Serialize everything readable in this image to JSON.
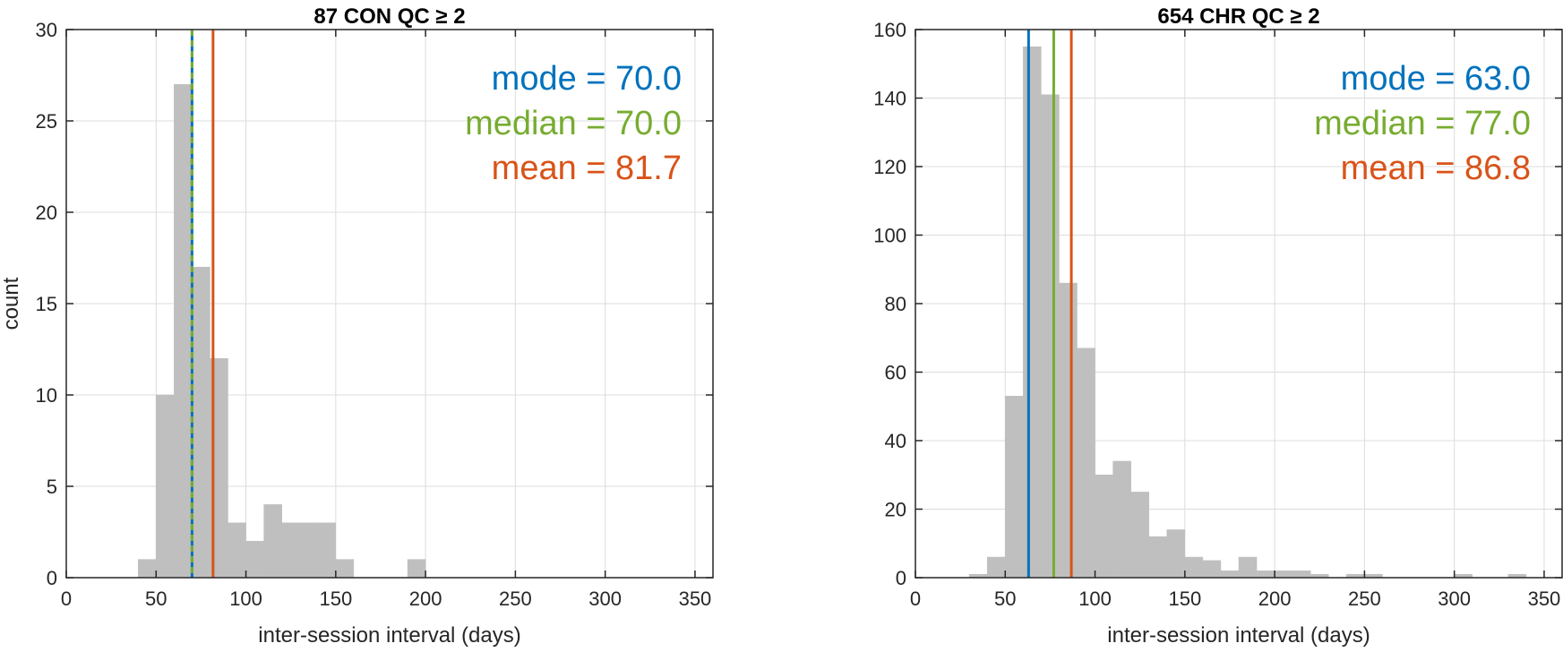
{
  "chart_data": [
    {
      "type": "bar",
      "title": "87 CON QC ≥ 2",
      "xlabel": "inter-session interval (days)",
      "ylabel": "count",
      "xlim": [
        0,
        360
      ],
      "ylim": [
        0,
        30
      ],
      "xticks": [
        0,
        50,
        100,
        150,
        200,
        250,
        300,
        350
      ],
      "yticks": [
        0,
        5,
        10,
        15,
        20,
        25,
        30
      ],
      "grid": true,
      "bin_width": 10,
      "bins": [
        {
          "x_start": 40,
          "count": 1
        },
        {
          "x_start": 50,
          "count": 10
        },
        {
          "x_start": 60,
          "count": 27
        },
        {
          "x_start": 70,
          "count": 17
        },
        {
          "x_start": 80,
          "count": 12
        },
        {
          "x_start": 90,
          "count": 3
        },
        {
          "x_start": 100,
          "count": 2
        },
        {
          "x_start": 110,
          "count": 4
        },
        {
          "x_start": 120,
          "count": 3
        },
        {
          "x_start": 130,
          "count": 3
        },
        {
          "x_start": 140,
          "count": 3
        },
        {
          "x_start": 150,
          "count": 1
        },
        {
          "x_start": 190,
          "count": 1
        }
      ],
      "stat_lines": [
        {
          "name": "mode",
          "value": 70.0,
          "color": "#0072BD",
          "dash": false
        },
        {
          "name": "median",
          "value": 70.0,
          "color": "#77AC30",
          "dash": true
        },
        {
          "name": "mean",
          "value": 81.7,
          "color": "#D95319",
          "dash": false
        }
      ],
      "stats_text": [
        {
          "text": "mode = 70.0",
          "color": "#0072BD"
        },
        {
          "text": "median = 70.0",
          "color": "#77AC30"
        },
        {
          "text": "mean = 81.7",
          "color": "#D95319"
        }
      ],
      "bar_color": "#BFBFBF"
    },
    {
      "type": "bar",
      "title": "654 CHR QC ≥ 2",
      "xlabel": "inter-session interval (days)",
      "ylabel": "",
      "xlim": [
        0,
        360
      ],
      "ylim": [
        0,
        160
      ],
      "xticks": [
        0,
        50,
        100,
        150,
        200,
        250,
        300,
        350
      ],
      "yticks": [
        0,
        20,
        40,
        60,
        80,
        100,
        120,
        140,
        160
      ],
      "grid": true,
      "bin_width": 10,
      "bins": [
        {
          "x_start": 30,
          "count": 1
        },
        {
          "x_start": 40,
          "count": 6
        },
        {
          "x_start": 50,
          "count": 53
        },
        {
          "x_start": 60,
          "count": 155
        },
        {
          "x_start": 70,
          "count": 141
        },
        {
          "x_start": 80,
          "count": 86
        },
        {
          "x_start": 90,
          "count": 67
        },
        {
          "x_start": 100,
          "count": 30
        },
        {
          "x_start": 110,
          "count": 34
        },
        {
          "x_start": 120,
          "count": 25
        },
        {
          "x_start": 130,
          "count": 12
        },
        {
          "x_start": 140,
          "count": 14
        },
        {
          "x_start": 150,
          "count": 6
        },
        {
          "x_start": 160,
          "count": 5
        },
        {
          "x_start": 170,
          "count": 2
        },
        {
          "x_start": 180,
          "count": 6
        },
        {
          "x_start": 190,
          "count": 2
        },
        {
          "x_start": 200,
          "count": 2
        },
        {
          "x_start": 210,
          "count": 2
        },
        {
          "x_start": 220,
          "count": 1
        },
        {
          "x_start": 240,
          "count": 1
        },
        {
          "x_start": 250,
          "count": 1
        },
        {
          "x_start": 300,
          "count": 1
        },
        {
          "x_start": 330,
          "count": 1
        }
      ],
      "stat_lines": [
        {
          "name": "mode",
          "value": 63.0,
          "color": "#0072BD",
          "dash": false
        },
        {
          "name": "median",
          "value": 77.0,
          "color": "#77AC30",
          "dash": false
        },
        {
          "name": "mean",
          "value": 86.8,
          "color": "#D95319",
          "dash": false
        }
      ],
      "stats_text": [
        {
          "text": "mode = 63.0",
          "color": "#0072BD"
        },
        {
          "text": "median = 77.0",
          "color": "#77AC30"
        },
        {
          "text": "mean = 86.8",
          "color": "#D95319"
        }
      ],
      "bar_color": "#BFBFBF"
    }
  ]
}
